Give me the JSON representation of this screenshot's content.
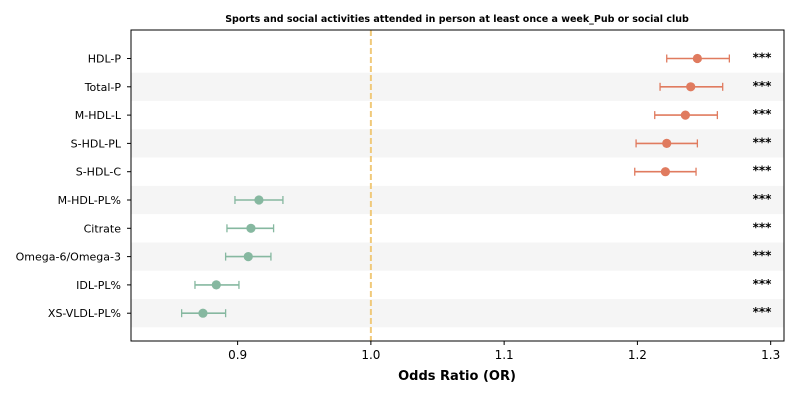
{
  "chart_data": {
    "type": "forest",
    "title": "Sports and social activities attended in person at least once a week_Pub or social club",
    "xlabel": "Odds Ratio (OR)",
    "xlim": [
      0.82,
      1.31
    ],
    "xticks": [
      0.9,
      1.0,
      1.1,
      1.2,
      1.3
    ],
    "xtick_labels": [
      "0.9",
      "1.0",
      "1.1",
      "1.2",
      "1.3"
    ],
    "reference_line": 1.0,
    "colors": {
      "positive": "#e07b5f",
      "negative": "#86b8a0",
      "reference": "#f0c97a",
      "band": "#f5f5f5"
    },
    "rows": [
      {
        "label": "HDL-P",
        "or": 1.245,
        "lo": 1.222,
        "hi": 1.269,
        "sig": "***",
        "direction": "positive"
      },
      {
        "label": "Total-P",
        "or": 1.24,
        "lo": 1.217,
        "hi": 1.264,
        "sig": "***",
        "direction": "positive"
      },
      {
        "label": "M-HDL-L",
        "or": 1.236,
        "lo": 1.213,
        "hi": 1.26,
        "sig": "***",
        "direction": "positive"
      },
      {
        "label": "S-HDL-PL",
        "or": 1.222,
        "lo": 1.199,
        "hi": 1.245,
        "sig": "***",
        "direction": "positive"
      },
      {
        "label": "S-HDL-C",
        "or": 1.221,
        "lo": 1.198,
        "hi": 1.244,
        "sig": "***",
        "direction": "positive"
      },
      {
        "label": "M-HDL-PL%",
        "or": 0.916,
        "lo": 0.898,
        "hi": 0.934,
        "sig": "***",
        "direction": "negative"
      },
      {
        "label": "Citrate",
        "or": 0.91,
        "lo": 0.892,
        "hi": 0.927,
        "sig": "***",
        "direction": "negative"
      },
      {
        "label": "Omega-6/Omega-3",
        "or": 0.908,
        "lo": 0.891,
        "hi": 0.925,
        "sig": "***",
        "direction": "negative"
      },
      {
        "label": "IDL-PL%",
        "or": 0.884,
        "lo": 0.868,
        "hi": 0.901,
        "sig": "***",
        "direction": "negative"
      },
      {
        "label": "XS-VLDL-PL%",
        "or": 0.874,
        "lo": 0.858,
        "hi": 0.891,
        "sig": "***",
        "direction": "negative"
      }
    ]
  }
}
